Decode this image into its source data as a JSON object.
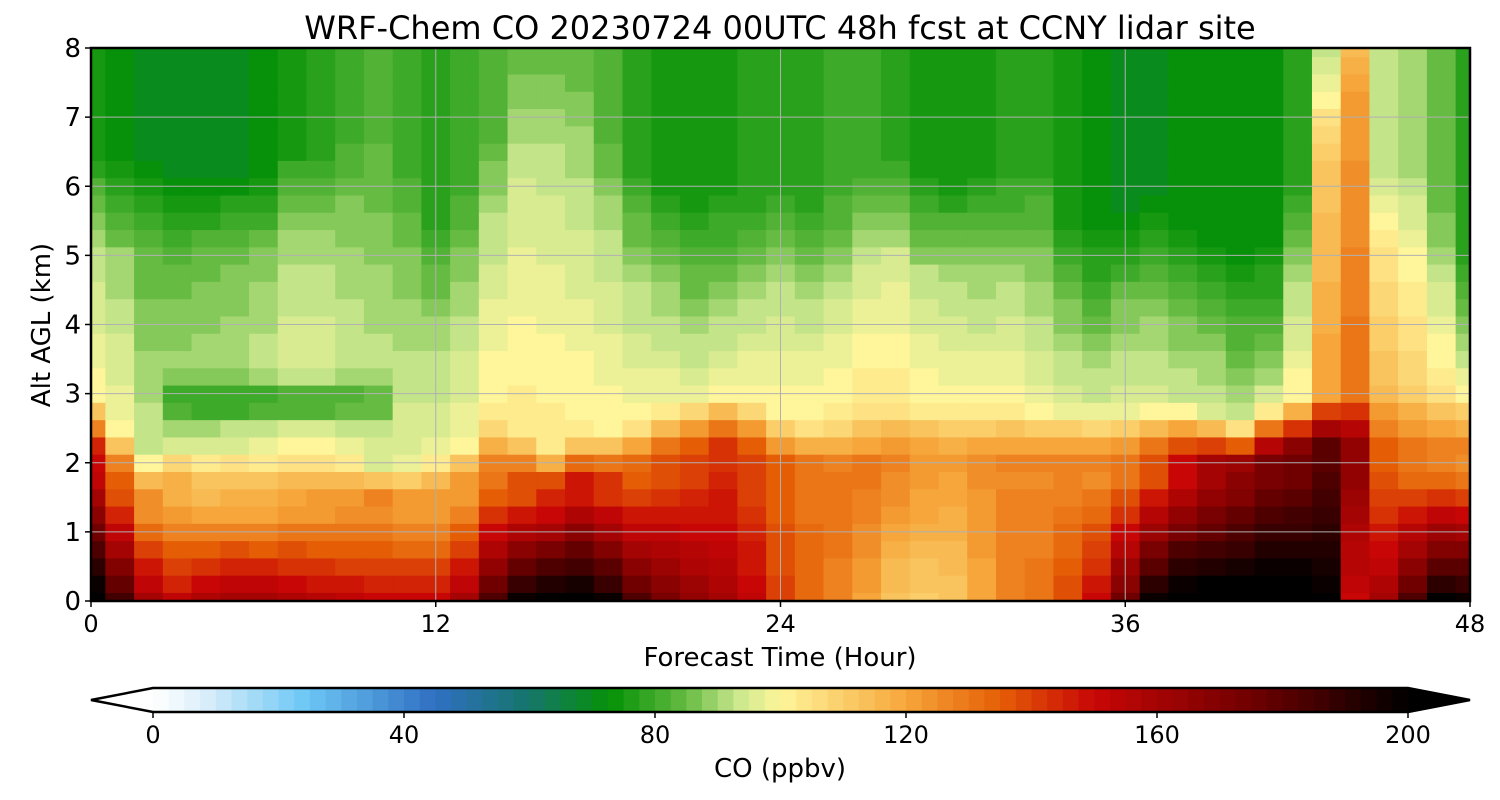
{
  "chart_data": {
    "type": "contour",
    "title": "WRF-Chem CO  20230724 00UTC 48h fcst at CCNY lidar site",
    "xlabel": "Forecast Time (Hour)",
    "ylabel": "Alt AGL (km)",
    "xlim": [
      0,
      48
    ],
    "ylim": [
      0,
      8
    ],
    "xticks": [
      0,
      12,
      24,
      36,
      48
    ],
    "yticks": [
      0,
      1,
      2,
      3,
      4,
      5,
      6,
      7,
      8
    ],
    "grid": true,
    "x_hours": [
      0,
      1,
      2,
      3,
      4,
      5,
      6,
      7,
      8,
      9,
      10,
      11,
      12,
      13,
      14,
      15,
      16,
      17,
      18,
      19,
      20,
      21,
      22,
      23,
      24,
      25,
      26,
      27,
      28,
      29,
      30,
      31,
      32,
      33,
      34,
      35,
      36,
      37,
      38,
      39,
      40,
      41,
      42,
      43,
      44,
      45,
      46,
      47,
      48
    ],
    "y_km": [
      0,
      0.25,
      0.5,
      0.75,
      1,
      1.25,
      1.5,
      1.75,
      2,
      2.25,
      2.5,
      2.75,
      3,
      3.25,
      3.5,
      3.75,
      4,
      4.25,
      4.5,
      4.75,
      5,
      5.25,
      5.5,
      5.75,
      6,
      6.25,
      6.5,
      6.75,
      7,
      7.25,
      7.5,
      7.75,
      8
    ],
    "profiles": {
      "blh_km": [
        2.9,
        2.5,
        2.1,
        2.3,
        2.2,
        2.2,
        2.1,
        2.1,
        2.1,
        2.1,
        2.0,
        2.0,
        2.1,
        2.3,
        2.6,
        2.4,
        2.2,
        2.4,
        2.4,
        2.6,
        2.8,
        2.9,
        3.0,
        2.9,
        2.7,
        2.6,
        2.6,
        2.7,
        2.8,
        2.8,
        2.8,
        2.8,
        2.8,
        2.8,
        2.8,
        2.8,
        2.8,
        2.8,
        2.8,
        2.7,
        2.6,
        2.8,
        2.9,
        3.0,
        3.0,
        3.0,
        3.0,
        3.0,
        3.0
      ],
      "mix_km": [
        5.2,
        5.0,
        5.0,
        4.9,
        4.9,
        4.9,
        4.9,
        5.2,
        5.2,
        5.5,
        5.8,
        5.0,
        4.2,
        4.6,
        5.5,
        6.4,
        6.2,
        6.0,
        5.4,
        4.8,
        4.6,
        4.3,
        4.4,
        4.5,
        4.6,
        4.5,
        4.6,
        4.8,
        5.0,
        4.7,
        4.6,
        4.7,
        4.8,
        4.9,
        4.3,
        4.0,
        4.3,
        4.5,
        4.2,
        4.0,
        3.7,
        3.7,
        4.6,
        6.5,
        7.6,
        5.0,
        5.0,
        4.5,
        3.6
      ],
      "bg_top_ppbv": [
        74,
        72,
        70,
        70,
        70,
        70,
        72,
        75,
        77,
        79,
        82,
        80,
        78,
        80,
        82,
        85,
        86,
        86,
        82,
        78,
        76,
        75,
        76,
        77,
        78,
        77,
        79,
        80,
        78,
        76,
        76,
        76,
        77,
        78,
        74,
        73,
        71,
        71,
        72,
        72,
        72,
        73,
        78,
        92,
        96,
        92,
        90,
        84,
        78
      ],
      "mix_ppbv": [
        95,
        93,
        88,
        88,
        89,
        90,
        92,
        94,
        94,
        92,
        90,
        91,
        92,
        93,
        96,
        97,
        97,
        96,
        95,
        94,
        93,
        92,
        93,
        94,
        95,
        95,
        96,
        98,
        98,
        96,
        95,
        94,
        94,
        92,
        90,
        89,
        90,
        90,
        89,
        89,
        88,
        90,
        95,
        115,
        125,
        108,
        103,
        98,
        95
      ],
      "pbl_ppbv": [
        150,
        135,
        124,
        118,
        116,
        117,
        118,
        120,
        121,
        123,
        126,
        122,
        121,
        123,
        130,
        138,
        145,
        148,
        142,
        136,
        138,
        140,
        143,
        139,
        134,
        131,
        130,
        129,
        126,
        123,
        121,
        124,
        126,
        126,
        127,
        126,
        130,
        138,
        150,
        160,
        168,
        172,
        175,
        180,
        165,
        135,
        130,
        128,
        126
      ],
      "sfc_ppbv": [
        205,
        185,
        160,
        152,
        158,
        160,
        160,
        158,
        155,
        152,
        150,
        150,
        150,
        160,
        182,
        198,
        204,
        205,
        198,
        182,
        172,
        165,
        160,
        152,
        140,
        132,
        128,
        120,
        112,
        110,
        112,
        120,
        128,
        130,
        138,
        150,
        175,
        198,
        205,
        206,
        206,
        206,
        205,
        200,
        150,
        160,
        182,
        200,
        198
      ],
      "layer_3km_ppbv": [
        0,
        0,
        0,
        78,
        76,
        76,
        78,
        78,
        78,
        80,
        82,
        0,
        0,
        0,
        0,
        0,
        0,
        0,
        0,
        0,
        0,
        0,
        0,
        0,
        0,
        0,
        0,
        0,
        0,
        0,
        0,
        0,
        0,
        0,
        0,
        0,
        0,
        0,
        0,
        0,
        0,
        0,
        0,
        0,
        0,
        0,
        0,
        0,
        0
      ]
    },
    "colorbar": {
      "label": "CO  (ppbv)",
      "min": 0,
      "max": 200,
      "ticks": [
        0,
        40,
        80,
        120,
        160,
        200
      ],
      "extend": "both",
      "levels_step": 2.5,
      "colors": [
        "#ffffff",
        "#dceffa",
        "#6ec8f5",
        "#2f6fc2",
        "#15766a",
        "#069206",
        "#66bb42",
        "#c9e78e",
        "#fff59a",
        "#f6a63a",
        "#e55e06",
        "#c80606",
        "#700000",
        "#000000"
      ],
      "stops": [
        0,
        8,
        24,
        45,
        60,
        73,
        85,
        93,
        100,
        120,
        135,
        150,
        175,
        200
      ]
    }
  }
}
